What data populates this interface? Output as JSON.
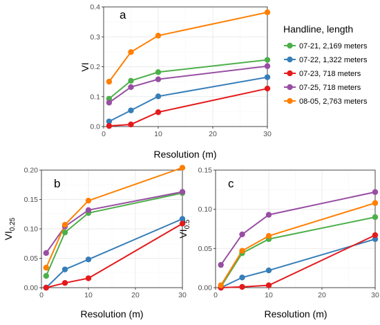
{
  "chart_data": [
    {
      "type": "line",
      "panel_label": "a",
      "xlabel": "Resolution (m)",
      "ylabel": "VI",
      "ylabel_sub": "",
      "xlim": [
        0,
        30
      ],
      "ylim": [
        0,
        0.4
      ],
      "xticks": [
        0,
        10,
        20,
        30
      ],
      "yticks": [
        0.0,
        0.1,
        0.2,
        0.3,
        0.4
      ],
      "ytick_labels": [
        "0.0",
        "0.1",
        "0.2",
        "0.3",
        "0.4"
      ],
      "grid": true,
      "legend_position": "right",
      "x": [
        1,
        5,
        10,
        30
      ],
      "series": [
        {
          "name": "07-21, 2,169 meters",
          "color": "#4daf4a",
          "values": [
            0.093,
            0.153,
            0.182,
            0.223
          ]
        },
        {
          "name": "07-22, 1,322 meters",
          "color": "#377eb8",
          "values": [
            0.017,
            0.054,
            0.101,
            0.165
          ]
        },
        {
          "name": "07-23, 718 meters",
          "color": "#e41a1c",
          "values": [
            0.002,
            0.007,
            0.048,
            0.127
          ]
        },
        {
          "name": "07-25, 718 meters",
          "color": "#984ea3",
          "values": [
            0.08,
            0.132,
            0.158,
            0.202
          ]
        },
        {
          "name": "08-05, 2,763 meters",
          "color": "#ff7f00",
          "values": [
            0.15,
            0.249,
            0.304,
            0.382
          ]
        }
      ]
    },
    {
      "type": "line",
      "panel_label": "b",
      "xlabel": "Resolution (m)",
      "ylabel": "VI",
      "ylabel_sub": "0.25",
      "xlim": [
        0,
        30
      ],
      "ylim": [
        0,
        0.2
      ],
      "xticks": [
        0,
        10,
        20,
        30
      ],
      "yticks": [
        0.0,
        0.05,
        0.1,
        0.15,
        0.2
      ],
      "ytick_labels": [
        "0.00",
        "0.05",
        "0.10",
        "0.15",
        "0.20"
      ],
      "grid": true,
      "x": [
        1,
        5,
        10,
        30
      ],
      "series": [
        {
          "name": "07-21, 2,169 meters",
          "color": "#4daf4a",
          "values": [
            0.02,
            0.094,
            0.127,
            0.161
          ]
        },
        {
          "name": "07-22, 1,322 meters",
          "color": "#377eb8",
          "values": [
            0.0,
            0.031,
            0.048,
            0.117
          ]
        },
        {
          "name": "07-23, 718 meters",
          "color": "#e41a1c",
          "values": [
            0.0,
            0.008,
            0.016,
            0.109
          ]
        },
        {
          "name": "07-25, 718 meters",
          "color": "#984ea3",
          "values": [
            0.059,
            0.104,
            0.132,
            0.163
          ]
        },
        {
          "name": "08-05, 2,763 meters",
          "color": "#ff7f00",
          "values": [
            0.034,
            0.107,
            0.148,
            0.204
          ]
        }
      ]
    },
    {
      "type": "line",
      "panel_label": "c",
      "xlabel": "Resolution (m)",
      "ylabel": "VI",
      "ylabel_sub": "0.5",
      "xlim": [
        0,
        30
      ],
      "ylim": [
        0,
        0.15
      ],
      "xticks": [
        0,
        10,
        20,
        30
      ],
      "yticks": [
        0.0,
        0.05,
        0.1,
        0.15
      ],
      "ytick_labels": [
        "0.00",
        "0.05",
        "0.10",
        "0.15"
      ],
      "grid": true,
      "x": [
        1,
        5,
        10,
        30
      ],
      "series": [
        {
          "name": "07-21, 2,169 meters",
          "color": "#4daf4a",
          "values": [
            0.001,
            0.044,
            0.062,
            0.09
          ]
        },
        {
          "name": "07-22, 1,322 meters",
          "color": "#377eb8",
          "values": [
            0.0,
            0.013,
            0.022,
            0.062
          ]
        },
        {
          "name": "07-23, 718 meters",
          "color": "#e41a1c",
          "values": [
            0.0,
            0.001,
            0.003,
            0.067
          ]
        },
        {
          "name": "07-25, 718 meters",
          "color": "#984ea3",
          "values": [
            0.029,
            0.068,
            0.093,
            0.122
          ]
        },
        {
          "name": "08-05, 2,763 meters",
          "color": "#ff7f00",
          "values": [
            0.003,
            0.047,
            0.066,
            0.108
          ]
        }
      ]
    }
  ],
  "legend": {
    "title": "Handline, length",
    "items": [
      {
        "label": "07-21, 2,169 meters",
        "color": "#4daf4a"
      },
      {
        "label": "07-22, 1,322 meters",
        "color": "#377eb8"
      },
      {
        "label": "07-23, 718 meters",
        "color": "#e41a1c"
      },
      {
        "label": "07-25, 718 meters",
        "color": "#984ea3"
      },
      {
        "label": "08-05, 2,763 meters",
        "color": "#ff7f00"
      }
    ]
  }
}
